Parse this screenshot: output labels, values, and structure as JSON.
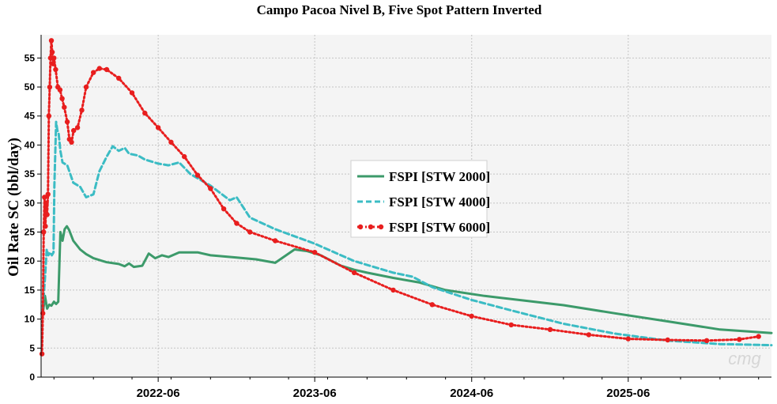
{
  "chart_data": {
    "type": "line",
    "title": "Campo Pacoa Nivel B, Five Spot Pattern Inverted",
    "xlabel": "",
    "ylabel": "Oil Rate SC (bbl/day)",
    "xlim": [
      "2021-09-01",
      "2026-05-01"
    ],
    "ylim": [
      0,
      59
    ],
    "yticks": [
      0,
      5,
      10,
      15,
      20,
      25,
      30,
      35,
      40,
      45,
      50,
      55
    ],
    "xticks": [
      "2022-06",
      "2023-06",
      "2024-06",
      "2025-06"
    ],
    "grid": true,
    "legend_position": "center-right",
    "watermark": "cmg",
    "series": [
      {
        "name": "FSPI [STW 2000]",
        "color": "#3c9a6a",
        "dash": "solid",
        "marker": "none",
        "points": [
          [
            "2021-09-05",
            11.0
          ],
          [
            "2021-09-10",
            14.0
          ],
          [
            "2021-09-15",
            11.8
          ],
          [
            "2021-09-20",
            12.5
          ],
          [
            "2021-09-25",
            12.3
          ],
          [
            "2021-10-01",
            13.0
          ],
          [
            "2021-10-06",
            12.6
          ],
          [
            "2021-10-11",
            13.0
          ],
          [
            "2021-10-16",
            25.0
          ],
          [
            "2021-10-21",
            23.5
          ],
          [
            "2021-10-26",
            25.5
          ],
          [
            "2021-10-31",
            26.0
          ],
          [
            "2021-11-05",
            25.4
          ],
          [
            "2021-11-15",
            23.5
          ],
          [
            "2021-12-01",
            22.0
          ],
          [
            "2021-12-15",
            21.2
          ],
          [
            "2022-01-01",
            20.5
          ],
          [
            "2022-02-01",
            19.8
          ],
          [
            "2022-03-01",
            19.5
          ],
          [
            "2022-03-15",
            19.1
          ],
          [
            "2022-03-25",
            19.6
          ],
          [
            "2022-04-05",
            19.0
          ],
          [
            "2022-04-25",
            19.2
          ],
          [
            "2022-05-10",
            21.3
          ],
          [
            "2022-05-25",
            20.5
          ],
          [
            "2022-06-10",
            21.0
          ],
          [
            "2022-06-25",
            20.7
          ],
          [
            "2022-07-20",
            21.5
          ],
          [
            "2022-09-01",
            21.5
          ],
          [
            "2022-10-01",
            21.0
          ],
          [
            "2022-12-01",
            20.6
          ],
          [
            "2023-01-15",
            20.3
          ],
          [
            "2023-03-01",
            19.7
          ],
          [
            "2023-04-15",
            22.0
          ],
          [
            "2023-05-15",
            21.7
          ],
          [
            "2023-06-15",
            21.0
          ],
          [
            "2023-08-01",
            19.2
          ],
          [
            "2023-09-01",
            18.5
          ],
          [
            "2023-10-01",
            18.0
          ],
          [
            "2023-12-01",
            17.1
          ],
          [
            "2024-02-01",
            16.3
          ],
          [
            "2024-04-01",
            15.0
          ],
          [
            "2024-07-01",
            14.0
          ],
          [
            "2024-10-01",
            13.2
          ],
          [
            "2025-01-01",
            12.4
          ],
          [
            "2025-05-01",
            11.0
          ],
          [
            "2025-09-01",
            9.6
          ],
          [
            "2026-01-01",
            8.2
          ],
          [
            "2026-05-01",
            7.6
          ]
        ]
      },
      {
        "name": "FSPI [STW 4000]",
        "color": "#3bbcc4",
        "dash": "dashed",
        "marker": "none",
        "points": [
          [
            "2021-09-05",
            12.0
          ],
          [
            "2021-09-10",
            17.0
          ],
          [
            "2021-09-14",
            22.0
          ],
          [
            "2021-09-18",
            21.0
          ],
          [
            "2021-09-22",
            21.5
          ],
          [
            "2021-09-26",
            21.0
          ],
          [
            "2021-09-30",
            21.5
          ],
          [
            "2021-10-02",
            33.0
          ],
          [
            "2021-10-06",
            44.0
          ],
          [
            "2021-10-09",
            42.5
          ],
          [
            "2021-10-12",
            42.0
          ],
          [
            "2021-10-16",
            39.0
          ],
          [
            "2021-10-21",
            37.0
          ],
          [
            "2021-11-01",
            36.5
          ],
          [
            "2021-11-15",
            33.5
          ],
          [
            "2021-12-01",
            32.8
          ],
          [
            "2021-12-15",
            31.0
          ],
          [
            "2022-01-01",
            31.5
          ],
          [
            "2022-01-15",
            35.5
          ],
          [
            "2022-02-01",
            38.0
          ],
          [
            "2022-02-15",
            39.8
          ],
          [
            "2022-03-01",
            39.0
          ],
          [
            "2022-03-15",
            39.5
          ],
          [
            "2022-03-25",
            38.5
          ],
          [
            "2022-04-15",
            38.2
          ],
          [
            "2022-05-01",
            37.5
          ],
          [
            "2022-06-01",
            36.8
          ],
          [
            "2022-06-25",
            36.5
          ],
          [
            "2022-07-20",
            37.0
          ],
          [
            "2022-08-15",
            35.0
          ],
          [
            "2022-10-01",
            33.0
          ],
          [
            "2022-11-15",
            30.5
          ],
          [
            "2022-12-01",
            31.0
          ],
          [
            "2023-01-01",
            27.5
          ],
          [
            "2023-03-01",
            25.5
          ],
          [
            "2023-06-01",
            23.0
          ],
          [
            "2023-09-01",
            20.0
          ],
          [
            "2023-12-01",
            18.0
          ],
          [
            "2024-01-15",
            17.3
          ],
          [
            "2024-03-01",
            15.5
          ],
          [
            "2024-06-01",
            13.3
          ],
          [
            "2024-09-01",
            11.5
          ],
          [
            "2025-01-01",
            9.2
          ],
          [
            "2025-05-01",
            7.5
          ],
          [
            "2025-09-01",
            6.3
          ],
          [
            "2026-01-01",
            5.7
          ],
          [
            "2026-05-01",
            5.5
          ]
        ]
      },
      {
        "name": "FSPI [STW 6000]",
        "color": "#e81e1e",
        "dash": "dotted",
        "marker": "circle",
        "points": [
          [
            "2021-09-03",
            4.0
          ],
          [
            "2021-09-05",
            11.0
          ],
          [
            "2021-09-07",
            25.0
          ],
          [
            "2021-09-09",
            31.0
          ],
          [
            "2021-09-11",
            26.0
          ],
          [
            "2021-09-13",
            30.0
          ],
          [
            "2021-09-15",
            28.0
          ],
          [
            "2021-09-17",
            31.5
          ],
          [
            "2021-09-19",
            45.0
          ],
          [
            "2021-09-21",
            50.0
          ],
          [
            "2021-09-23",
            55.0
          ],
          [
            "2021-09-25",
            58.0
          ],
          [
            "2021-09-27",
            56.0
          ],
          [
            "2021-09-29",
            54.0
          ],
          [
            "2021-10-01",
            55.0
          ],
          [
            "2021-10-05",
            53.0
          ],
          [
            "2021-10-10",
            50.0
          ],
          [
            "2021-10-15",
            49.5
          ],
          [
            "2021-10-20",
            48.0
          ],
          [
            "2021-10-25",
            46.5
          ],
          [
            "2021-11-01",
            44.0
          ],
          [
            "2021-11-06",
            41.0
          ],
          [
            "2021-11-11",
            40.5
          ],
          [
            "2021-11-16",
            42.5
          ],
          [
            "2021-11-25",
            43.0
          ],
          [
            "2021-12-05",
            46.0
          ],
          [
            "2021-12-15",
            50.0
          ],
          [
            "2022-01-01",
            52.5
          ],
          [
            "2022-01-15",
            53.2
          ],
          [
            "2022-02-01",
            53.0
          ],
          [
            "2022-03-01",
            51.5
          ],
          [
            "2022-04-01",
            49.0
          ],
          [
            "2022-05-01",
            45.5
          ],
          [
            "2022-06-01",
            43.0
          ],
          [
            "2022-07-01",
            40.5
          ],
          [
            "2022-08-01",
            38.0
          ],
          [
            "2022-09-01",
            34.8
          ],
          [
            "2022-10-01",
            32.5
          ],
          [
            "2022-11-01",
            29.0
          ],
          [
            "2022-12-01",
            26.5
          ],
          [
            "2023-01-01",
            25.0
          ],
          [
            "2023-03-01",
            23.5
          ],
          [
            "2023-06-01",
            21.5
          ],
          [
            "2023-09-01",
            18.0
          ],
          [
            "2023-12-01",
            15.0
          ],
          [
            "2024-03-01",
            12.5
          ],
          [
            "2024-06-01",
            10.5
          ],
          [
            "2024-09-01",
            9.0
          ],
          [
            "2024-12-01",
            8.2
          ],
          [
            "2025-03-01",
            7.3
          ],
          [
            "2025-06-01",
            6.6
          ],
          [
            "2025-09-01",
            6.4
          ],
          [
            "2025-12-01",
            6.3
          ],
          [
            "2026-02-15",
            6.5
          ],
          [
            "2026-04-01",
            7.0
          ]
        ]
      }
    ]
  }
}
